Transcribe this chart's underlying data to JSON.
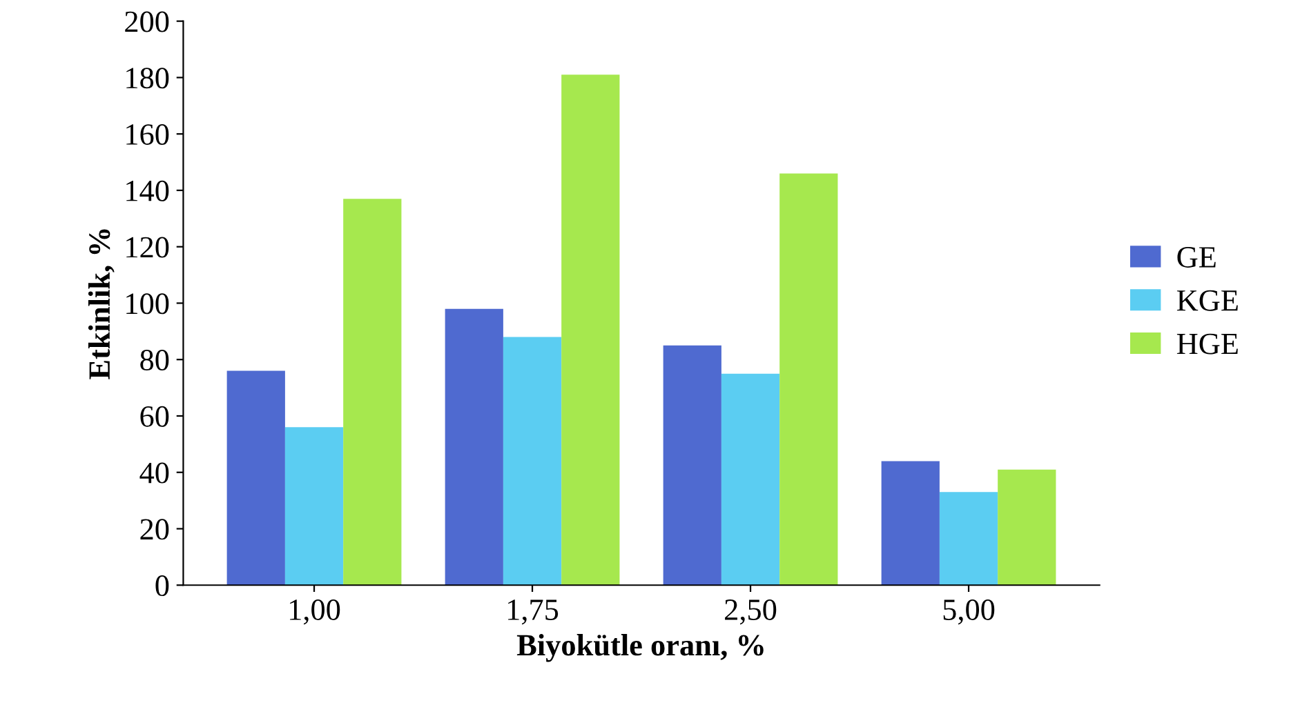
{
  "chart_data": {
    "type": "bar",
    "xlabel": "Biyokütle oranı, %",
    "ylabel": "Etkinlik, %",
    "categories": [
      "1,00",
      "1,75",
      "2,50",
      "5,00"
    ],
    "series": [
      {
        "name": "GE",
        "color": "#4f6ad0",
        "values": [
          76,
          98,
          85,
          44
        ]
      },
      {
        "name": "KGE",
        "color": "#5bcdf2",
        "values": [
          56,
          88,
          75,
          33
        ]
      },
      {
        "name": "HGE",
        "color": "#a6e84e",
        "values": [
          137,
          181,
          146,
          41
        ]
      }
    ],
    "ylim": [
      0,
      200
    ],
    "yticks": [
      0,
      20,
      40,
      60,
      80,
      100,
      120,
      140,
      160,
      180,
      200
    ],
    "grid": false,
    "legend": "right"
  }
}
